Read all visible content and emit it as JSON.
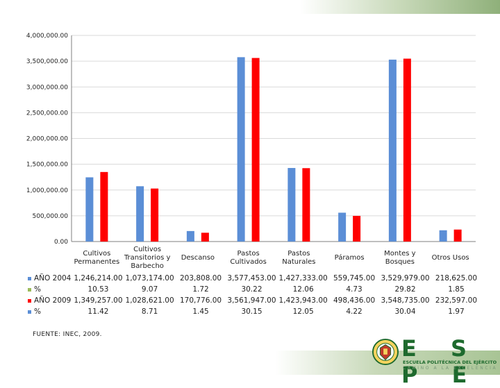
{
  "chart_data": {
    "type": "bar",
    "title": "",
    "xlabel": "",
    "ylabel": "",
    "ylim": [
      0,
      4000000
    ],
    "yticks": [
      "0.00",
      "500,000.00",
      "1,000,000.00",
      "1,500,000.00",
      "2,000,000.00",
      "2,500,000.00",
      "3,000,000.00",
      "3,500,000.00",
      "4,000,000.00"
    ],
    "ytick_values": [
      0,
      500000,
      1000000,
      1500000,
      2000000,
      2500000,
      3000000,
      3500000,
      4000000
    ],
    "grid": true,
    "categories": [
      [
        "Cultivos",
        "Permanentes"
      ],
      [
        "Cultivos",
        "Transitorios y",
        "Barbecho"
      ],
      [
        "Descanso"
      ],
      [
        "Pastos",
        "Cultivados"
      ],
      [
        "Pastos",
        "Naturales"
      ],
      [
        "Páramos"
      ],
      [
        "Montes y",
        "Bosques"
      ],
      [
        "Otros Usos"
      ]
    ],
    "series": [
      {
        "name": "AÑO 2004",
        "color": "#5b8ed6",
        "values": [
          1246214,
          1073174,
          203808,
          3577453,
          1427333,
          559745,
          3529979,
          218625
        ]
      },
      {
        "name": "AÑO 2009",
        "color": "#ff0000",
        "values": [
          1349257,
          1028621,
          170776,
          3561947,
          1423943,
          498436,
          3548735,
          232597
        ]
      }
    ],
    "table": [
      {
        "label": "AÑO 2004",
        "color": "#5b8ed6",
        "cells": [
          "1,246,214.00",
          "1,073,174.00",
          "203,808.00",
          "3,577,453.00",
          "1,427,333.00",
          "559,745.00",
          "3,529,979.00",
          "218,625.00"
        ]
      },
      {
        "label": "%",
        "color": "#9bbb59",
        "cells": [
          "10.53",
          "9.07",
          "1.72",
          "30.22",
          "12.06",
          "4.73",
          "29.82",
          "1.85"
        ]
      },
      {
        "label": "AÑO 2009",
        "color": "#ff0000",
        "cells": [
          "1,349,257.00",
          "1,028,621.00",
          "170,776.00",
          "3,561,947.00",
          "1,423,943.00",
          "498,436.00",
          "3,548,735.00",
          "232,597.00"
        ]
      },
      {
        "label": "%",
        "color": "#5b8ed6",
        "cells": [
          "11.42",
          "8.71",
          "1.45",
          "30.15",
          "12.05",
          "4.22",
          "30.04",
          "1.97"
        ]
      }
    ]
  },
  "source": "FUENTE: INEC, 2009.",
  "logo": {
    "letters": "E S P E",
    "line1": "ESCUELA POLITÉCNICA DEL EJÉRCITO",
    "line2": "CAMINO A LA EXCELENCIA"
  }
}
